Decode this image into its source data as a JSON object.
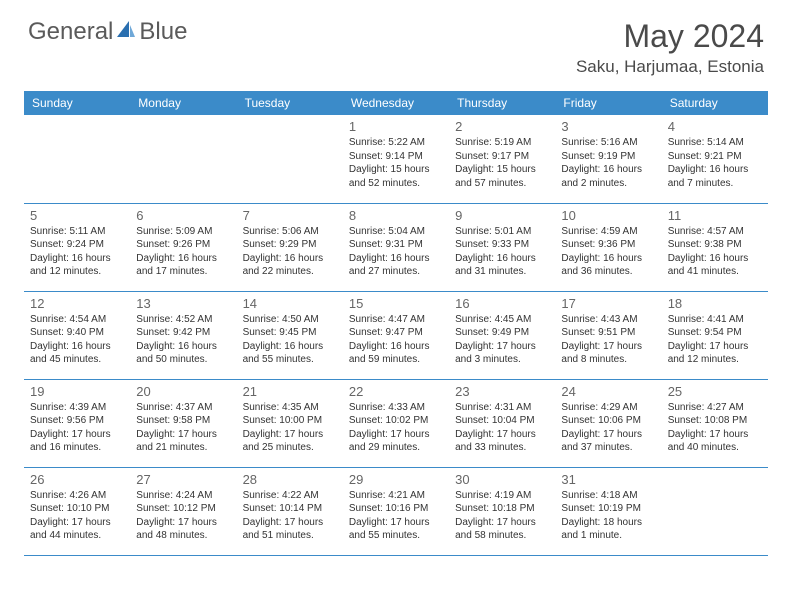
{
  "brand": {
    "name_a": "General",
    "name_b": "Blue"
  },
  "title": "May 2024",
  "location": "Saku, Harjumaa, Estonia",
  "colors": {
    "header_bg": "#3b8bc9",
    "header_text": "#ffffff",
    "border": "#3b8bc9",
    "body_text": "#333333",
    "daynum_text": "#666666",
    "title_text": "#4a4a4a",
    "logo_text": "#5a5a5a",
    "logo_accent": "#2a6fb0",
    "background": "#ffffff"
  },
  "typography": {
    "title_fontsize": 32,
    "location_fontsize": 17,
    "dayhead_fontsize": 12,
    "daynum_fontsize": 13,
    "body_fontsize": 10
  },
  "day_headers": [
    "Sunday",
    "Monday",
    "Tuesday",
    "Wednesday",
    "Thursday",
    "Friday",
    "Saturday"
  ],
  "weeks": [
    [
      {
        "n": "",
        "sr": "",
        "ss": "",
        "dl": ""
      },
      {
        "n": "",
        "sr": "",
        "ss": "",
        "dl": ""
      },
      {
        "n": "",
        "sr": "",
        "ss": "",
        "dl": ""
      },
      {
        "n": "1",
        "sr": "Sunrise: 5:22 AM",
        "ss": "Sunset: 9:14 PM",
        "dl": "Daylight: 15 hours and 52 minutes."
      },
      {
        "n": "2",
        "sr": "Sunrise: 5:19 AM",
        "ss": "Sunset: 9:17 PM",
        "dl": "Daylight: 15 hours and 57 minutes."
      },
      {
        "n": "3",
        "sr": "Sunrise: 5:16 AM",
        "ss": "Sunset: 9:19 PM",
        "dl": "Daylight: 16 hours and 2 minutes."
      },
      {
        "n": "4",
        "sr": "Sunrise: 5:14 AM",
        "ss": "Sunset: 9:21 PM",
        "dl": "Daylight: 16 hours and 7 minutes."
      }
    ],
    [
      {
        "n": "5",
        "sr": "Sunrise: 5:11 AM",
        "ss": "Sunset: 9:24 PM",
        "dl": "Daylight: 16 hours and 12 minutes."
      },
      {
        "n": "6",
        "sr": "Sunrise: 5:09 AM",
        "ss": "Sunset: 9:26 PM",
        "dl": "Daylight: 16 hours and 17 minutes."
      },
      {
        "n": "7",
        "sr": "Sunrise: 5:06 AM",
        "ss": "Sunset: 9:29 PM",
        "dl": "Daylight: 16 hours and 22 minutes."
      },
      {
        "n": "8",
        "sr": "Sunrise: 5:04 AM",
        "ss": "Sunset: 9:31 PM",
        "dl": "Daylight: 16 hours and 27 minutes."
      },
      {
        "n": "9",
        "sr": "Sunrise: 5:01 AM",
        "ss": "Sunset: 9:33 PM",
        "dl": "Daylight: 16 hours and 31 minutes."
      },
      {
        "n": "10",
        "sr": "Sunrise: 4:59 AM",
        "ss": "Sunset: 9:36 PM",
        "dl": "Daylight: 16 hours and 36 minutes."
      },
      {
        "n": "11",
        "sr": "Sunrise: 4:57 AM",
        "ss": "Sunset: 9:38 PM",
        "dl": "Daylight: 16 hours and 41 minutes."
      }
    ],
    [
      {
        "n": "12",
        "sr": "Sunrise: 4:54 AM",
        "ss": "Sunset: 9:40 PM",
        "dl": "Daylight: 16 hours and 45 minutes."
      },
      {
        "n": "13",
        "sr": "Sunrise: 4:52 AM",
        "ss": "Sunset: 9:42 PM",
        "dl": "Daylight: 16 hours and 50 minutes."
      },
      {
        "n": "14",
        "sr": "Sunrise: 4:50 AM",
        "ss": "Sunset: 9:45 PM",
        "dl": "Daylight: 16 hours and 55 minutes."
      },
      {
        "n": "15",
        "sr": "Sunrise: 4:47 AM",
        "ss": "Sunset: 9:47 PM",
        "dl": "Daylight: 16 hours and 59 minutes."
      },
      {
        "n": "16",
        "sr": "Sunrise: 4:45 AM",
        "ss": "Sunset: 9:49 PM",
        "dl": "Daylight: 17 hours and 3 minutes."
      },
      {
        "n": "17",
        "sr": "Sunrise: 4:43 AM",
        "ss": "Sunset: 9:51 PM",
        "dl": "Daylight: 17 hours and 8 minutes."
      },
      {
        "n": "18",
        "sr": "Sunrise: 4:41 AM",
        "ss": "Sunset: 9:54 PM",
        "dl": "Daylight: 17 hours and 12 minutes."
      }
    ],
    [
      {
        "n": "19",
        "sr": "Sunrise: 4:39 AM",
        "ss": "Sunset: 9:56 PM",
        "dl": "Daylight: 17 hours and 16 minutes."
      },
      {
        "n": "20",
        "sr": "Sunrise: 4:37 AM",
        "ss": "Sunset: 9:58 PM",
        "dl": "Daylight: 17 hours and 21 minutes."
      },
      {
        "n": "21",
        "sr": "Sunrise: 4:35 AM",
        "ss": "Sunset: 10:00 PM",
        "dl": "Daylight: 17 hours and 25 minutes."
      },
      {
        "n": "22",
        "sr": "Sunrise: 4:33 AM",
        "ss": "Sunset: 10:02 PM",
        "dl": "Daylight: 17 hours and 29 minutes."
      },
      {
        "n": "23",
        "sr": "Sunrise: 4:31 AM",
        "ss": "Sunset: 10:04 PM",
        "dl": "Daylight: 17 hours and 33 minutes."
      },
      {
        "n": "24",
        "sr": "Sunrise: 4:29 AM",
        "ss": "Sunset: 10:06 PM",
        "dl": "Daylight: 17 hours and 37 minutes."
      },
      {
        "n": "25",
        "sr": "Sunrise: 4:27 AM",
        "ss": "Sunset: 10:08 PM",
        "dl": "Daylight: 17 hours and 40 minutes."
      }
    ],
    [
      {
        "n": "26",
        "sr": "Sunrise: 4:26 AM",
        "ss": "Sunset: 10:10 PM",
        "dl": "Daylight: 17 hours and 44 minutes."
      },
      {
        "n": "27",
        "sr": "Sunrise: 4:24 AM",
        "ss": "Sunset: 10:12 PM",
        "dl": "Daylight: 17 hours and 48 minutes."
      },
      {
        "n": "28",
        "sr": "Sunrise: 4:22 AM",
        "ss": "Sunset: 10:14 PM",
        "dl": "Daylight: 17 hours and 51 minutes."
      },
      {
        "n": "29",
        "sr": "Sunrise: 4:21 AM",
        "ss": "Sunset: 10:16 PM",
        "dl": "Daylight: 17 hours and 55 minutes."
      },
      {
        "n": "30",
        "sr": "Sunrise: 4:19 AM",
        "ss": "Sunset: 10:18 PM",
        "dl": "Daylight: 17 hours and 58 minutes."
      },
      {
        "n": "31",
        "sr": "Sunrise: 4:18 AM",
        "ss": "Sunset: 10:19 PM",
        "dl": "Daylight: 18 hours and 1 minute."
      },
      {
        "n": "",
        "sr": "",
        "ss": "",
        "dl": ""
      }
    ]
  ]
}
